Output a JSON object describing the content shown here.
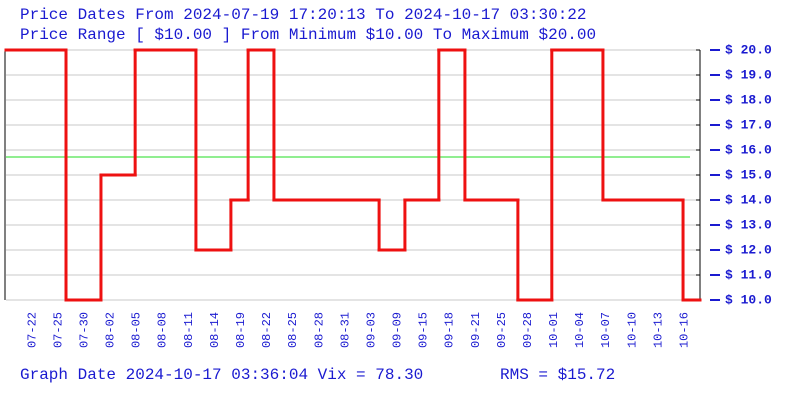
{
  "chart_data": {
    "type": "step",
    "title": "Price Dates From 2024-07-19 17:20:13 To 2024-10-17 03:30:22",
    "subtitle": "Price Range [ $10.00 ] From Minimum $10.00 To Maximum $20.00",
    "footer": "Graph Date 2024-10-17 03:36:04 Vix = 78.30",
    "rms": {
      "value": 15.72,
      "label": "RMS = $15.72",
      "color": "#22dd22"
    },
    "series": [
      {
        "name": "Price",
        "color": "#ee1111",
        "x": [
          0,
          2.3,
          3.64,
          4.95,
          7.28,
          8.62,
          9.28,
          10.27,
          14.3,
          15.29,
          16.59,
          17.59,
          19.62,
          20.92,
          22.88,
          25.95
        ],
        "values": [
          20,
          10,
          15,
          20,
          12,
          14,
          20,
          14,
          12,
          14,
          20,
          14,
          10,
          20,
          14,
          10
        ]
      }
    ],
    "xlim": [
      0,
      26.6
    ],
    "xticks": [
      {
        "value": 1,
        "label": "07-22"
      },
      {
        "value": 2,
        "label": "07-25"
      },
      {
        "value": 3,
        "label": "07-30"
      },
      {
        "value": 4,
        "label": "08-02"
      },
      {
        "value": 5,
        "label": "08-05"
      },
      {
        "value": 6,
        "label": "08-08"
      },
      {
        "value": 7,
        "label": "08-11"
      },
      {
        "value": 8,
        "label": "08-14"
      },
      {
        "value": 9,
        "label": "08-19"
      },
      {
        "value": 10,
        "label": "08-22"
      },
      {
        "value": 11,
        "label": "08-25"
      },
      {
        "value": 12,
        "label": "08-28"
      },
      {
        "value": 13,
        "label": "08-31"
      },
      {
        "value": 14,
        "label": "09-03"
      },
      {
        "value": 15,
        "label": "09-09"
      },
      {
        "value": 16,
        "label": "09-15"
      },
      {
        "value": 17,
        "label": "09-18"
      },
      {
        "value": 18,
        "label": "09-21"
      },
      {
        "value": 19,
        "label": "09-25"
      },
      {
        "value": 20,
        "label": "09-28"
      },
      {
        "value": 21,
        "label": "10-01"
      },
      {
        "value": 22,
        "label": "10-04"
      },
      {
        "value": 23,
        "label": "10-07"
      },
      {
        "value": 24,
        "label": "10-10"
      },
      {
        "value": 25,
        "label": "10-13"
      },
      {
        "value": 26,
        "label": "10-16"
      }
    ],
    "ylim": [
      10,
      20
    ],
    "yticks": [
      {
        "value": 20,
        "label": "$ 20.0"
      },
      {
        "value": 19,
        "label": "$ 19.0"
      },
      {
        "value": 18,
        "label": "$ 18.0"
      },
      {
        "value": 17,
        "label": "$ 17.0"
      },
      {
        "value": 16,
        "label": "$ 16.0"
      },
      {
        "value": 15,
        "label": "$ 15.0"
      },
      {
        "value": 14,
        "label": "$ 14.0"
      },
      {
        "value": 13,
        "label": "$ 13.0"
      },
      {
        "value": 12,
        "label": "$ 12.0"
      },
      {
        "value": 11,
        "label": "$ 11.0"
      },
      {
        "value": 10,
        "label": "$ 10.0"
      }
    ],
    "grid": true
  }
}
